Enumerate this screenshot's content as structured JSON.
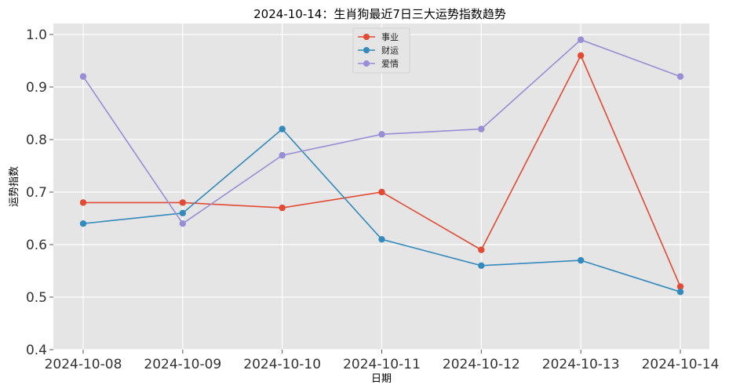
{
  "chart_data": {
    "type": "line",
    "title": "2024-10-14：生肖狗最近7日三大运势指数趋势",
    "xlabel": "日期",
    "ylabel": "运势指数",
    "categories": [
      "2024-10-08",
      "2024-10-09",
      "2024-10-10",
      "2024-10-11",
      "2024-10-12",
      "2024-10-13",
      "2024-10-14"
    ],
    "ylim": [
      0.4,
      1.0
    ],
    "yticks": [
      "0.4",
      "0.5",
      "0.6",
      "0.7",
      "0.8",
      "0.9",
      "1.0"
    ],
    "grid": true,
    "legend_position": "top-center",
    "series": [
      {
        "name": "事业",
        "color": "#E24A33",
        "values": [
          0.68,
          0.68,
          0.67,
          0.7,
          0.59,
          0.96,
          0.52
        ]
      },
      {
        "name": "财运",
        "color": "#348ABD",
        "values": [
          0.64,
          0.66,
          0.82,
          0.61,
          0.56,
          0.57,
          0.51
        ]
      },
      {
        "name": "爱情",
        "color": "#988ED5",
        "values": [
          0.92,
          0.64,
          0.77,
          0.81,
          0.82,
          0.99,
          0.92
        ]
      }
    ]
  }
}
